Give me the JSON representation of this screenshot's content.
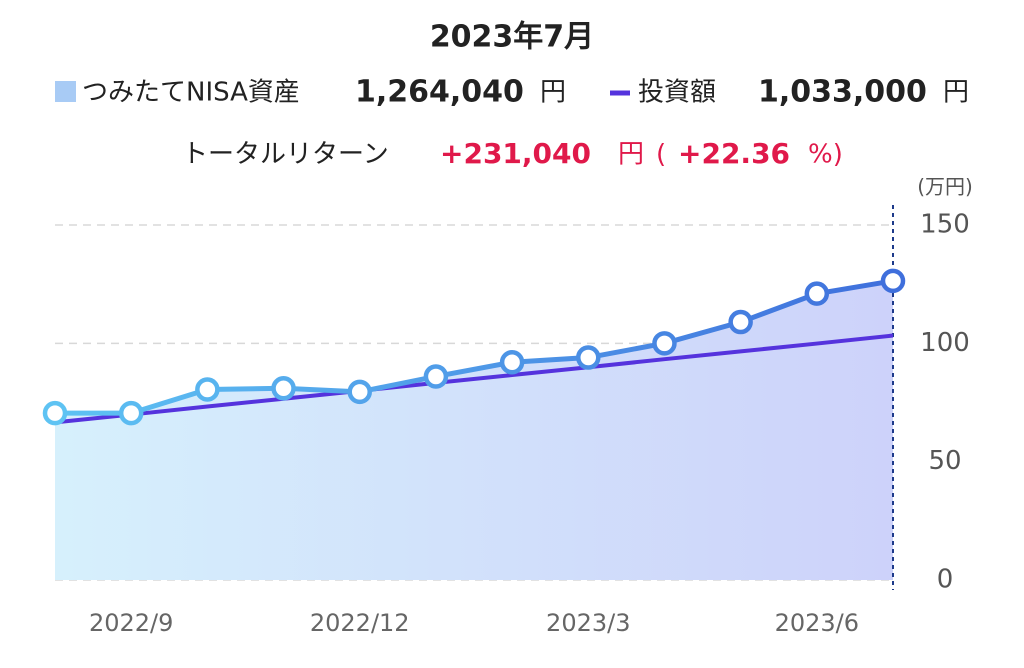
{
  "header": {
    "title": "2023年7月",
    "asset_label": "つみたてNISA資産",
    "asset_amount": "1,264,040",
    "yen": "円",
    "invest_label": "投資額",
    "invest_amount": "1,033,000",
    "return_label": "トータルリターン",
    "return_amount": "+231,040",
    "open_paren": "(",
    "return_pct": "+22.36",
    "close_pct": "%)"
  },
  "chart_data": {
    "type": "line",
    "unit": "(万円)",
    "categories": [
      null,
      "2022/9",
      null,
      null,
      "2022/12",
      null,
      null,
      "2023/3",
      null,
      null,
      "2023/6",
      null
    ],
    "series": [
      {
        "name": "つみたてNISA資産",
        "color": "#4686e3",
        "values": [
          70.5,
          70.5,
          80.5,
          81,
          79.5,
          86,
          92,
          94,
          100,
          109,
          121,
          126.4
        ]
      },
      {
        "name": "投資額",
        "color": "#5533dd",
        "values": [
          66.6,
          69.9,
          73.3,
          76.6,
          79.9,
          83.3,
          86.6,
          89.9,
          93.3,
          96.6,
          99.9,
          103.3
        ]
      }
    ],
    "ylim": [
      0,
      150
    ],
    "yticks": [
      0,
      50,
      100,
      150
    ],
    "grid": true
  }
}
